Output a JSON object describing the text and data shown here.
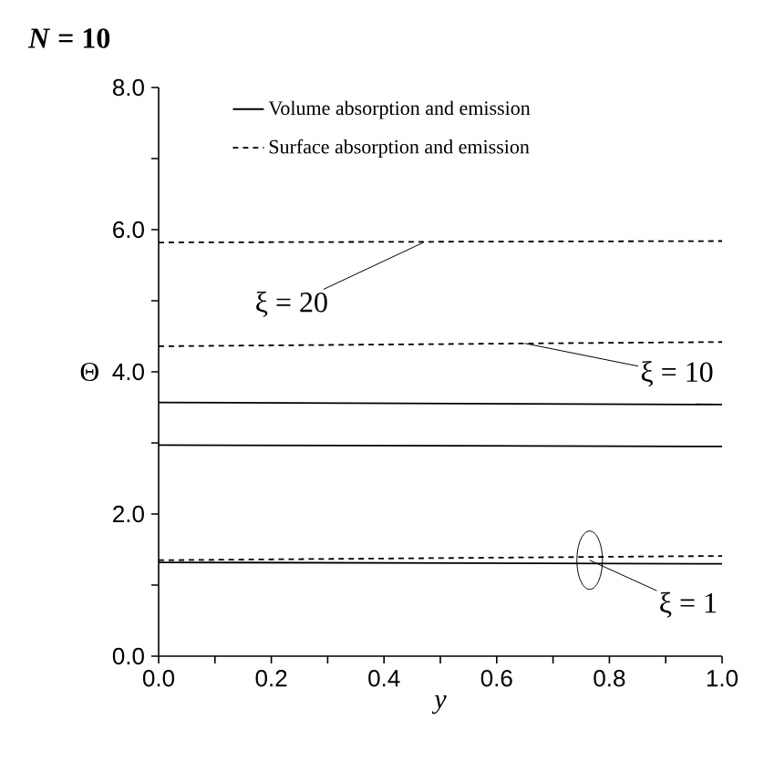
{
  "chart_data": {
    "type": "line",
    "title": "*N* = 10",
    "xlabel": "y",
    "ylabel": "Θ",
    "x": [
      0,
      1
    ],
    "series": [
      {
        "name": "Volume absorption and emission",
        "color": "#000000",
        "line_style": "solid",
        "values": [
          3.57,
          3.54
        ]
      },
      {
        "color": "#000000",
        "line_style": "solid",
        "values": [
          2.97,
          2.95
        ]
      },
      {
        "color": "#000000",
        "line_style": "solid",
        "values": [
          1.32,
          1.3
        ]
      },
      {
        "name": "Surface absorption and emission",
        "color": "#000000",
        "line_style": "dashed",
        "values": [
          5.82,
          5.84
        ]
      },
      {
        "color": "#000000",
        "line_style": "dashed",
        "values": [
          4.36,
          4.42
        ]
      },
      {
        "color": "#000000",
        "line_style": "dashed",
        "values": [
          1.35,
          1.41
        ]
      }
    ],
    "annotations": [
      {
        "text": "ξ = 20",
        "x": 0.47,
        "y": 5.82
      },
      {
        "text": "ξ = 10",
        "x": 0.65,
        "y": 4.4
      },
      {
        "text": "ξ = 1",
        "x": 0.765,
        "y": 1.35
      }
    ],
    "xlim": [
      0,
      1
    ],
    "ylim": [
      0,
      8
    ],
    "xticks": [
      {
        "value": 0,
        "label": "0.0"
      },
      {
        "value": 0.1,
        "label": null
      },
      {
        "value": 0.2,
        "label": "0.2"
      },
      {
        "value": 0.3,
        "label": null
      },
      {
        "value": 0.4,
        "label": "0.4"
      },
      {
        "value": 0.5,
        "label": null
      },
      {
        "value": 0.6,
        "label": "0.6"
      },
      {
        "value": 0.7,
        "label": null
      },
      {
        "value": 0.8,
        "label": "0.8"
      },
      {
        "value": 0.9,
        "label": null
      },
      {
        "value": 1,
        "label": "1.0"
      }
    ],
    "yticks": [
      {
        "value": 0,
        "label": "0.0"
      },
      {
        "value": 1,
        "label": null
      },
      {
        "value": 2,
        "label": "2.0"
      },
      {
        "value": 3,
        "label": null
      },
      {
        "value": 4,
        "label": "4.0"
      },
      {
        "value": 5,
        "label": null
      },
      {
        "value": 6,
        "label": "6.0"
      },
      {
        "value": 7,
        "label": null
      },
      {
        "value": 8,
        "label": "8.0"
      }
    ],
    "grid": false,
    "legend": "top",
    "marker": "none"
  }
}
